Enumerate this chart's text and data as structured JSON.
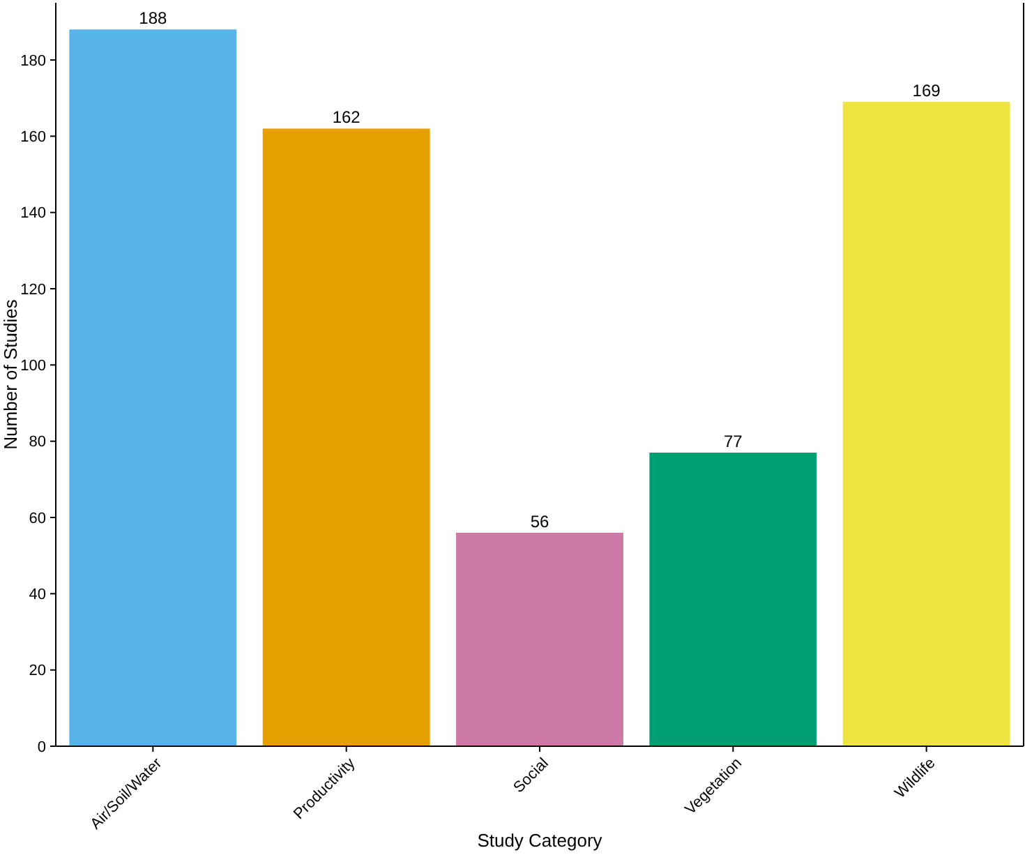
{
  "chart_data": {
    "type": "bar",
    "xlabel": "Study Category",
    "ylabel": "Number of Studies",
    "categories": [
      "Air/Soil/Water",
      "Productivity",
      "Social",
      "Vegetation",
      "Wildlife"
    ],
    "values": [
      188,
      162,
      56,
      77,
      169
    ],
    "colors": [
      "#56b4e9",
      "#e69f00",
      "#cc79a7",
      "#009e73",
      "#f0e442"
    ],
    "ylim": [
      0,
      195
    ],
    "yticks": [
      0,
      20,
      40,
      60,
      80,
      100,
      120,
      140,
      160,
      180
    ],
    "data_labels": true
  }
}
